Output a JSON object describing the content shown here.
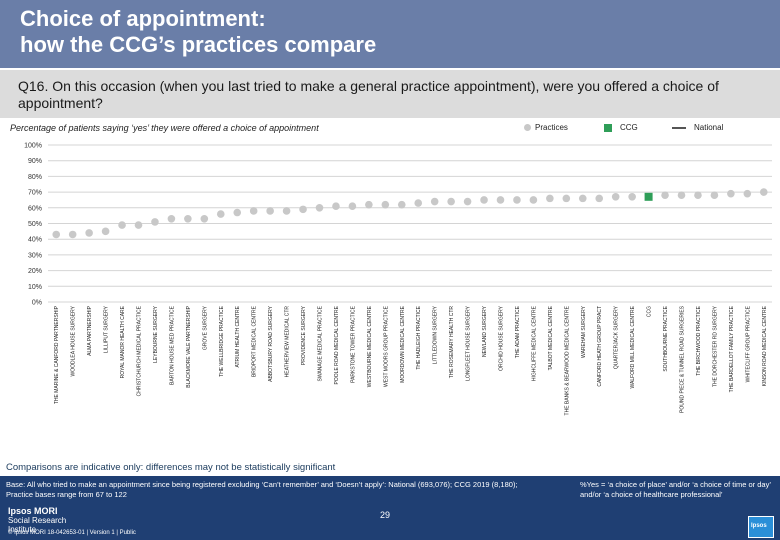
{
  "header": {
    "title_line1": "Choice of appointment:",
    "title_line2": "how the CCG’s practices compare"
  },
  "question": {
    "text": "Q16. On this occasion (when you last tried to make a general practice appointment), were you offered a choice of appointment?"
  },
  "subtitle": "Percentage of patients saying ‘yes’ they were offered a choice of appointment",
  "legend": {
    "practices": "Practices",
    "ccg": "CCG",
    "national": "National"
  },
  "colors": {
    "practice_marker": "#c8c8c8",
    "ccg_marker": "#2f9e58",
    "gridline": "#d4d4d4",
    "header_bg": "#6a7ea8",
    "footer_bg": "#1f3f73"
  },
  "chart_data": {
    "type": "scatter",
    "title": "Percentage of patients saying ‘yes’ they were offered a choice of appointment",
    "ylim": [
      0,
      100
    ],
    "yticks": [
      0,
      10,
      20,
      30,
      40,
      50,
      60,
      70,
      80,
      90,
      100
    ],
    "ytick_labels": [
      "0%",
      "10%",
      "20%",
      "30%",
      "40%",
      "50%",
      "60%",
      "70%",
      "80%",
      "90%",
      "100%"
    ],
    "grid": true,
    "categories": [
      "THE MARINE & CANFORD PARTNERSHIP",
      "WOODLEA HOUSE SURGERY",
      "ALMA PARTNERSHIP",
      "LILLIPUT SURGERY",
      "ROYAL MANOR HEALTH CARE",
      "CHRISTCHURCH MEDICAL PRACTICE",
      "LEYBOURNE SURGERY",
      "BARTON HOUSE MED PRACTICE",
      "BLACKMORE VALE PARTNERSHIP",
      "GROVE SURGERY",
      "THE WELLBRIDGE PRACTICE",
      "ATRIUM HEALTH CENTRE",
      "BRIDPORT MEDICAL CENTRE",
      "ABBOTSBURY ROAD SURGERY",
      "HEATHERVIEW MEDICAL CTR",
      "PROVIDENCE SURGERY",
      "SWANAGE MEDICAL PRACTICE",
      "POOLE ROAD MEDICAL CENTRE",
      "PARKSTONE TOWER PRACTICE",
      "WESTBOURNE MEDICAL CENTRE",
      "WEST MOORS GROUP PRACTICE",
      "MOORDOWN MEDICAL CENTRE",
      "THE HADLEIGH PRACTICE",
      "LITTLEDOWN SURGERY",
      "THE ROSEMARY HEALTH CTR",
      "LONGFLEET HOUSE SURGERY",
      "NEWLAND SURGERY",
      "ORCHID HOUSE SURGERY",
      "THE ADAM PRACTICE",
      "HIGHCLIFFE MEDICAL CENTRE",
      "TALBOT MEDICAL CENTRE",
      "THE BANKS & BEARWOOD MEDICAL CENTRE",
      "WAREHAM SURGERY",
      "CANFORD HEATH GROUP PRACT",
      "QUARTERJACK SURGERY",
      "WALFORD MILL MEDICAL CENTRE",
      "CCG",
      "SOUTHBOURNE PRACTICE",
      "POUND PIECE & TUNNEL ROAD SURGERIES",
      "THE BIRCHWOOD PRACTICE",
      "THE DORCHESTER RD SURGERY",
      "THE BARDELLOT FAMILY PRACTICE",
      "WHITECLIFF GROUP PRACTICE",
      "KINSON ROAD MEDICAL CENTRE"
    ],
    "values": [
      43,
      43,
      44,
      45,
      49,
      49,
      51,
      53,
      53,
      53,
      56,
      57,
      58,
      58,
      58,
      59,
      60,
      61,
      61,
      62,
      62,
      62,
      63,
      64,
      64,
      64,
      65,
      65,
      65,
      65,
      66,
      66,
      66,
      66,
      67,
      67,
      67,
      68,
      68,
      68,
      68,
      69,
      69,
      70
    ],
    "ccg_index": 36,
    "ccg_value": 67
  },
  "comparison_note": "Comparisons are indicative only: differences may not be statistically significant",
  "footer": {
    "base_text": "Base: All who tried to make an appointment since being registered excluding ‘Can’t remember’ and ‘Doesn’t apply’: National (693,076); CCG 2019 (8,180); Practice bases range from 67 to 122",
    "footnote": "%Yes = ‘a choice of place’ and/or ‘a choice of time or day’ and/or ‘a choice of healthcare professional’",
    "page_number": "29",
    "logo_main": "Ipsos MORI",
    "logo_sub1": "Social Research",
    "logo_sub2": "Institute",
    "copyright": "© Ipsos MORI      18-042653-01 | Version 1 | Public",
    "badge": "Ipsos"
  }
}
